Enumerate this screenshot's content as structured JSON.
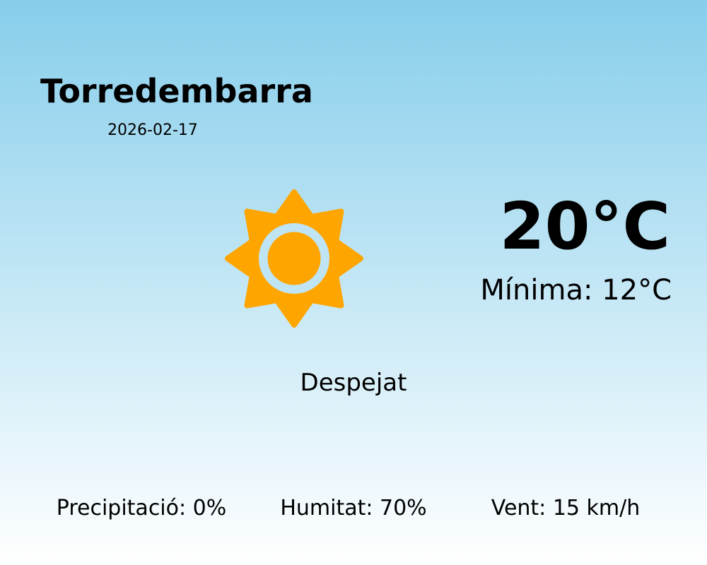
{
  "location": {
    "city": "Torredembarra",
    "date": "2026-02-17"
  },
  "current": {
    "temperature": "20°C",
    "minimum": "Mínima: 12°C",
    "condition": "Despejat",
    "icon": "sun-icon"
  },
  "details": {
    "precipitation": "Precipitació: 0%",
    "humidity": "Humitat: 70%",
    "wind": "Vent: 15 km/h"
  },
  "colors": {
    "sun": "#ffa500",
    "sky_top": "#87ceeb",
    "sky_bottom": "#ffffff"
  }
}
